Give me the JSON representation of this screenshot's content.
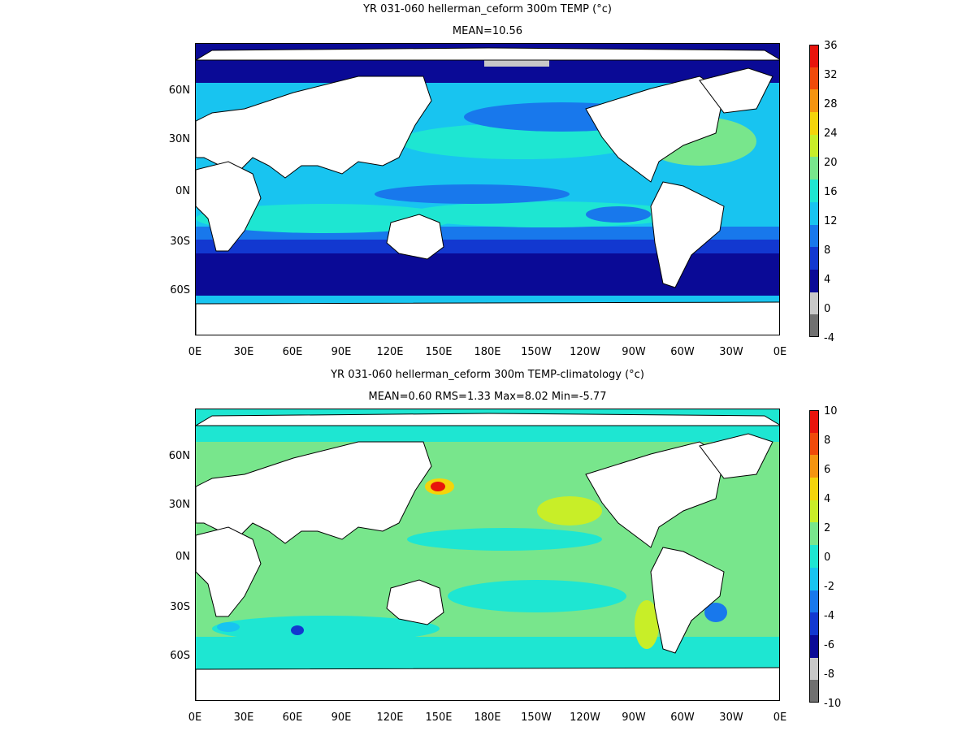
{
  "panels": [
    {
      "title": "YR 031-060 hellerman_ceform 300m TEMP (°c)",
      "subtitle": "MEAN=10.56",
      "colorbar": {
        "labels": [
          "36",
          "32",
          "28",
          "24",
          "20",
          "16",
          "12",
          "8",
          "4",
          "0",
          "-4"
        ],
        "colors": [
          "#e8140c",
          "#f04a0a",
          "#f59410",
          "#f4d40a",
          "#c8ee28",
          "#78e68c",
          "#1ee6d2",
          "#18c4f0",
          "#1878ec",
          "#1238d0",
          "#0a0a96",
          "#c8c8c8",
          "#707070"
        ]
      }
    },
    {
      "title": "YR 031-060 hellerman_ceform 300m TEMP-climatology (°c)",
      "subtitle": "MEAN=0.60   RMS=1.33   Max=8.02   Min=-5.77",
      "colorbar": {
        "labels": [
          "10",
          "8",
          "6",
          "4",
          "2",
          "0",
          "-2",
          "-4",
          "-6",
          "-8",
          "-10"
        ],
        "colors": [
          "#e8140c",
          "#f04a0a",
          "#f59410",
          "#f4d40a",
          "#c8ee28",
          "#78e68c",
          "#1ee6d2",
          "#18c4f0",
          "#1878ec",
          "#1238d0",
          "#0a0a96",
          "#c8c8c8",
          "#707070"
        ]
      }
    }
  ],
  "axes": {
    "lat_labels": [
      "60N",
      "30N",
      "0N",
      "30S",
      "60S"
    ],
    "lon_labels": [
      "0E",
      "30E",
      "60E",
      "90E",
      "120E",
      "150E",
      "180E",
      "150W",
      "120W",
      "90W",
      "60W",
      "30W",
      "0E"
    ]
  }
}
